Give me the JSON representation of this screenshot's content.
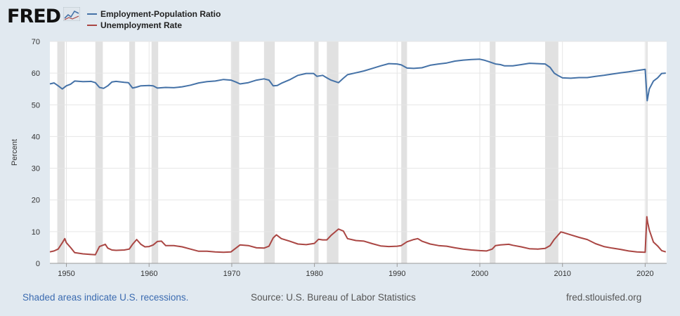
{
  "brand": {
    "logo_text": "FRED",
    "logo_icon": "fred-chart-icon"
  },
  "footer": {
    "recession_note": "Shaded areas indicate U.S. recessions.",
    "source": "Source: U.S. Bureau of Labor Statistics",
    "site": "fred.stlouisfed.org"
  },
  "chart_data": {
    "type": "line",
    "title": "",
    "xlabel": "",
    "ylabel": "Percent",
    "xlim": [
      1948,
      2022.6
    ],
    "ylim": [
      0,
      70
    ],
    "y_ticks": [
      0,
      10,
      20,
      30,
      40,
      50,
      60,
      70
    ],
    "x_ticks": [
      1950,
      1960,
      1970,
      1980,
      1990,
      2000,
      2010,
      2020
    ],
    "grid": true,
    "legend_position": "top-left",
    "recessions": [
      [
        1948.9,
        1949.8
      ],
      [
        1953.5,
        1954.4
      ],
      [
        1957.6,
        1958.3
      ],
      [
        1960.3,
        1961.1
      ],
      [
        1969.9,
        1970.9
      ],
      [
        1973.9,
        1975.2
      ],
      [
        1980.0,
        1980.5
      ],
      [
        1981.5,
        1982.9
      ],
      [
        1990.5,
        1991.2
      ],
      [
        2001.2,
        2001.9
      ],
      [
        2007.9,
        2009.5
      ],
      [
        2020.1,
        2020.3
      ]
    ],
    "series": [
      {
        "name": "Employment-Population Ratio",
        "color": "#4572a7",
        "x": [
          1948.0,
          1948.5,
          1949.0,
          1949.5,
          1950.0,
          1950.5,
          1951.0,
          1952.0,
          1953.0,
          1953.5,
          1954.0,
          1954.5,
          1955.0,
          1955.5,
          1956.0,
          1957.0,
          1957.5,
          1958.0,
          1958.5,
          1959.0,
          1960.0,
          1960.5,
          1961.0,
          1962.0,
          1963.0,
          1964.0,
          1965.0,
          1966.0,
          1967.0,
          1968.0,
          1969.0,
          1969.9,
          1970.5,
          1971.0,
          1972.0,
          1973.0,
          1973.9,
          1974.5,
          1975.0,
          1975.5,
          1976.0,
          1977.0,
          1978.0,
          1979.0,
          1979.9,
          1980.3,
          1981.0,
          1981.5,
          1982.0,
          1982.9,
          1983.5,
          1984.0,
          1985.0,
          1986.0,
          1987.0,
          1988.0,
          1989.0,
          1990.0,
          1990.5,
          1991.2,
          1992.0,
          1993.0,
          1994.0,
          1995.0,
          1996.0,
          1997.0,
          1998.0,
          1999.0,
          2000.0,
          2000.5,
          2001.0,
          2001.9,
          2002.5,
          2003.0,
          2004.0,
          2005.0,
          2006.0,
          2007.0,
          2007.9,
          2008.5,
          2009.0,
          2009.5,
          2010.0,
          2011.0,
          2012.0,
          2013.0,
          2014.0,
          2015.0,
          2016.0,
          2017.0,
          2018.0,
          2019.0,
          2020.0,
          2020.25,
          2020.5,
          2021.0,
          2021.5,
          2022.0,
          2022.5
        ],
        "values": [
          56.6,
          56.9,
          56.0,
          55.0,
          56.0,
          56.5,
          57.5,
          57.3,
          57.4,
          57.0,
          55.5,
          55.2,
          56.0,
          57.2,
          57.4,
          57.1,
          57.0,
          55.3,
          55.6,
          56.0,
          56.1,
          56.0,
          55.3,
          55.5,
          55.4,
          55.7,
          56.2,
          56.9,
          57.3,
          57.5,
          58.0,
          57.8,
          57.2,
          56.6,
          57.0,
          57.8,
          58.2,
          57.8,
          56.0,
          56.1,
          56.8,
          57.9,
          59.3,
          59.9,
          59.9,
          59.0,
          59.3,
          58.5,
          57.8,
          57.0,
          58.4,
          59.5,
          60.1,
          60.7,
          61.5,
          62.3,
          63.0,
          62.9,
          62.6,
          61.6,
          61.5,
          61.7,
          62.5,
          62.9,
          63.2,
          63.8,
          64.1,
          64.3,
          64.4,
          64.1,
          63.7,
          62.9,
          62.7,
          62.3,
          62.3,
          62.7,
          63.1,
          63.0,
          62.9,
          61.8,
          60.0,
          59.2,
          58.5,
          58.4,
          58.6,
          58.6,
          59.0,
          59.3,
          59.7,
          60.1,
          60.4,
          60.8,
          61.2,
          51.3,
          55.0,
          57.5,
          58.5,
          59.9,
          60.0
        ]
      },
      {
        "name": "Unemployment Rate",
        "color": "#aa4643",
        "x": [
          1948.0,
          1948.5,
          1949.0,
          1949.5,
          1949.8,
          1950.0,
          1950.5,
          1951.0,
          1952.0,
          1953.0,
          1953.5,
          1954.0,
          1954.7,
          1955.0,
          1955.5,
          1956.0,
          1957.0,
          1957.6,
          1958.0,
          1958.5,
          1959.0,
          1959.5,
          1960.0,
          1960.5,
          1961.0,
          1961.5,
          1962.0,
          1963.0,
          1964.0,
          1965.0,
          1966.0,
          1967.0,
          1968.0,
          1969.0,
          1969.9,
          1970.5,
          1971.0,
          1972.0,
          1973.0,
          1973.9,
          1974.5,
          1975.0,
          1975.4,
          1976.0,
          1977.0,
          1978.0,
          1979.0,
          1980.0,
          1980.5,
          1981.0,
          1981.5,
          1982.0,
          1982.9,
          1983.5,
          1984.0,
          1985.0,
          1986.0,
          1987.0,
          1988.0,
          1989.0,
          1990.0,
          1990.5,
          1991.2,
          1992.0,
          1992.5,
          1993.0,
          1994.0,
          1995.0,
          1996.0,
          1997.0,
          1998.0,
          1999.0,
          2000.0,
          2000.8,
          2001.5,
          2001.9,
          2002.5,
          2003.5,
          2004.0,
          2005.0,
          2006.0,
          2007.0,
          2007.9,
          2008.5,
          2009.0,
          2009.5,
          2009.8,
          2010.0,
          2011.0,
          2012.0,
          2013.0,
          2014.0,
          2015.0,
          2016.0,
          2017.0,
          2018.0,
          2019.0,
          2020.0,
          2020.2,
          2020.3,
          2020.5,
          2021.0,
          2021.5,
          2022.0,
          2022.5
        ],
        "values": [
          3.6,
          3.9,
          4.5,
          6.5,
          7.8,
          6.5,
          5.0,
          3.4,
          3.0,
          2.8,
          2.7,
          5.3,
          6.0,
          4.8,
          4.2,
          4.1,
          4.2,
          4.5,
          6.0,
          7.5,
          6.0,
          5.2,
          5.3,
          5.8,
          6.9,
          7.0,
          5.6,
          5.6,
          5.2,
          4.5,
          3.8,
          3.8,
          3.6,
          3.5,
          3.6,
          4.8,
          5.8,
          5.6,
          4.9,
          4.8,
          5.4,
          8.0,
          9.0,
          7.8,
          7.0,
          6.1,
          5.9,
          6.3,
          7.6,
          7.4,
          7.4,
          8.8,
          10.8,
          10.2,
          7.8,
          7.2,
          7.0,
          6.2,
          5.5,
          5.3,
          5.4,
          5.6,
          6.8,
          7.5,
          7.8,
          7.0,
          6.1,
          5.6,
          5.4,
          4.9,
          4.5,
          4.2,
          4.0,
          3.9,
          4.5,
          5.6,
          5.8,
          6.0,
          5.7,
          5.2,
          4.6,
          4.5,
          4.7,
          5.6,
          7.5,
          9.0,
          9.9,
          9.8,
          9.0,
          8.2,
          7.5,
          6.2,
          5.3,
          4.8,
          4.4,
          3.9,
          3.6,
          3.5,
          14.7,
          13.0,
          10.5,
          6.7,
          5.5,
          4.0,
          3.6
        ]
      }
    ]
  }
}
